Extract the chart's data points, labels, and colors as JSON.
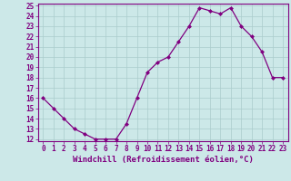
{
  "x": [
    0,
    1,
    2,
    3,
    4,
    5,
    6,
    7,
    8,
    9,
    10,
    11,
    12,
    13,
    14,
    15,
    16,
    17,
    18,
    19,
    20,
    21,
    22,
    23
  ],
  "y": [
    16.0,
    15.0,
    14.0,
    13.0,
    12.5,
    12.0,
    12.0,
    12.0,
    13.5,
    16.0,
    18.5,
    19.5,
    20.0,
    21.5,
    23.0,
    24.8,
    24.5,
    24.2,
    24.8,
    23.0,
    22.0,
    20.5,
    18.0,
    18.0
  ],
  "line_color": "#800080",
  "marker": "D",
  "marker_size": 2.0,
  "bg_color": "#cce8e8",
  "grid_color": "#aacccc",
  "xlabel": "Windchill (Refroidissement éolien,°C)",
  "ylim": [
    12,
    25
  ],
  "xlim": [
    -0.5,
    23.5
  ],
  "yticks": [
    12,
    13,
    14,
    15,
    16,
    17,
    18,
    19,
    20,
    21,
    22,
    23,
    24,
    25
  ],
  "xticks": [
    0,
    1,
    2,
    3,
    4,
    5,
    6,
    7,
    8,
    9,
    10,
    11,
    12,
    13,
    14,
    15,
    16,
    17,
    18,
    19,
    20,
    21,
    22,
    23
  ],
  "tick_label_size": 5.5,
  "xlabel_size": 6.5,
  "axis_color": "#800080",
  "linewidth": 0.9
}
